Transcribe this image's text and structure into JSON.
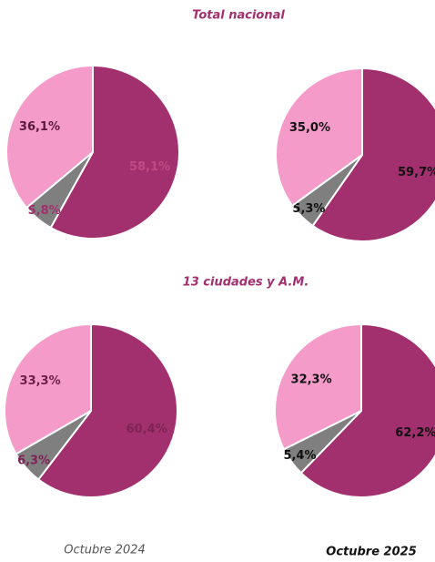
{
  "row_titles": [
    "Total nacional",
    "13 ciudades y A.M."
  ],
  "column_titles": [
    "Octubre 2024",
    "Octubre 2025"
  ],
  "chart_data": [
    {
      "type": "pie",
      "values": [
        58.1,
        5.8,
        36.1
      ],
      "value_labels": [
        "58,1%",
        "5,8%",
        "36,1%"
      ],
      "colors": [
        "#a3306e",
        "#7f7f7f",
        "#f59bca"
      ],
      "label_colors": [
        "#c04a86",
        "#a3306e",
        "#5a1a3c"
      ]
    },
    {
      "type": "pie",
      "values": [
        59.7,
        5.3,
        35.0
      ],
      "value_labels": [
        "59,7%",
        "5,3%",
        "35,0%"
      ],
      "colors": [
        "#a3306e",
        "#7f7f7f",
        "#f59bca"
      ],
      "label_colors": [
        "#111111",
        "#111111",
        "#111111"
      ]
    },
    {
      "type": "pie",
      "values": [
        60.4,
        6.3,
        33.3
      ],
      "value_labels": [
        "60,4%",
        "6,3%",
        "33,3%"
      ],
      "colors": [
        "#a3306e",
        "#7f7f7f",
        "#f59bca"
      ],
      "label_colors": [
        "#7e2455",
        "#7e2455",
        "#6a1f47"
      ]
    },
    {
      "type": "pie",
      "values": [
        62.2,
        5.4,
        32.3
      ],
      "value_labels": [
        "62,2%",
        "5,4%",
        "32,3%"
      ],
      "colors": [
        "#a3306e",
        "#7f7f7f",
        "#f59bca"
      ],
      "label_colors": [
        "#111111",
        "#111111",
        "#111111"
      ]
    }
  ]
}
